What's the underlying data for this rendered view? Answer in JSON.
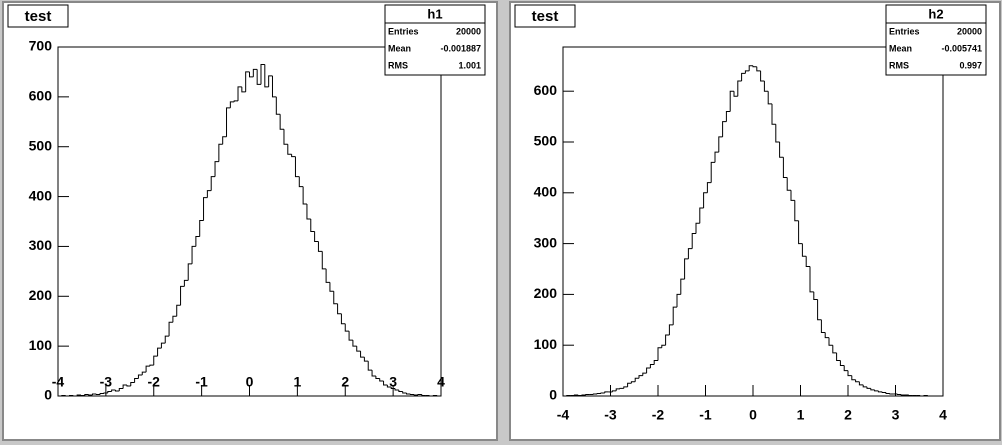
{
  "chart_data": [
    {
      "type": "histogram",
      "pad_title": "test",
      "stats_title": "h1",
      "stats": [
        {
          "label": "Entries",
          "value": 20000
        },
        {
          "label": "Mean",
          "value": -0.001887
        },
        {
          "label": "RMS",
          "value": 1.001
        }
      ],
      "bins": [
        -4,
        -3.92,
        -3.84,
        -3.76,
        -3.68,
        -3.6,
        -3.52,
        -3.44,
        -3.36,
        -3.28,
        -3.2,
        -3.12,
        -3.04,
        -2.96,
        -2.88,
        -2.8,
        -2.72,
        -2.64,
        -2.56,
        -2.48,
        -2.4,
        -2.32,
        -2.24,
        -2.16,
        -2.08,
        -2,
        -1.92,
        -1.84,
        -1.76,
        -1.68,
        -1.6,
        -1.52,
        -1.44,
        -1.36,
        -1.28,
        -1.2,
        -1.12,
        -1.04,
        -0.96,
        -0.88,
        -0.8,
        -0.72,
        -0.64,
        -0.56,
        -0.48,
        -0.4,
        -0.32,
        -0.24,
        -0.16,
        -0.08,
        0,
        0.08,
        0.16,
        0.24,
        0.32,
        0.4,
        0.48,
        0.56,
        0.64,
        0.72,
        0.8,
        0.88,
        0.96,
        1.04,
        1.12,
        1.2,
        1.28,
        1.36,
        1.44,
        1.52,
        1.6,
        1.68,
        1.76,
        1.84,
        1.92,
        2,
        2.08,
        2.16,
        2.24,
        2.32,
        2.4,
        2.48,
        2.56,
        2.64,
        2.72,
        2.8,
        2.88,
        2.96,
        3.04,
        3.12,
        3.2,
        3.28,
        3.36,
        3.44,
        3.52,
        3.6,
        3.68,
        3.76,
        3.84,
        3.92,
        4
      ],
      "values": [
        0,
        1,
        0,
        1,
        0,
        2,
        1,
        3,
        2,
        4,
        3,
        5,
        6,
        9,
        12,
        10,
        15,
        22,
        20,
        27,
        35,
        42,
        48,
        60,
        62,
        80,
        96,
        106,
        120,
        148,
        160,
        182,
        220,
        232,
        265,
        300,
        320,
        352,
        398,
        412,
        440,
        470,
        505,
        520,
        578,
        590,
        592,
        620,
        610,
        650,
        640,
        655,
        625,
        665,
        620,
        642,
        600,
        565,
        535,
        505,
        485,
        480,
        440,
        420,
        385,
        355,
        330,
        310,
        290,
        255,
        228,
        210,
        185,
        165,
        145,
        130,
        112,
        100,
        90,
        78,
        70,
        52,
        40,
        35,
        30,
        22,
        18,
        15,
        12,
        9,
        6,
        4,
        3,
        2,
        3,
        1,
        1,
        0,
        1,
        0
      ],
      "color": "#000000",
      "xlim": [
        -4,
        4
      ],
      "xticks": [
        -4,
        -3,
        -2,
        -1,
        0,
        1,
        2,
        3,
        4
      ],
      "ylim": [
        0,
        700
      ],
      "yticks": [
        0,
        100,
        200,
        300,
        400,
        500,
        600,
        700
      ]
    },
    {
      "type": "histogram",
      "pad_title": "test",
      "stats_title": "h2",
      "stats": [
        {
          "label": "Entries",
          "value": 20000
        },
        {
          "label": "Mean",
          "value": -0.005741
        },
        {
          "label": "RMS",
          "value": 0.997
        }
      ],
      "bins": [
        -4,
        -3.92,
        -3.84,
        -3.76,
        -3.68,
        -3.6,
        -3.52,
        -3.44,
        -3.36,
        -3.28,
        -3.2,
        -3.12,
        -3.04,
        -2.96,
        -2.88,
        -2.8,
        -2.72,
        -2.64,
        -2.56,
        -2.48,
        -2.4,
        -2.32,
        -2.24,
        -2.16,
        -2.08,
        -2,
        -1.92,
        -1.84,
        -1.76,
        -1.68,
        -1.6,
        -1.52,
        -1.44,
        -1.36,
        -1.28,
        -1.2,
        -1.12,
        -1.04,
        -0.96,
        -0.88,
        -0.8,
        -0.72,
        -0.64,
        -0.56,
        -0.48,
        -0.4,
        -0.32,
        -0.24,
        -0.16,
        -0.08,
        0,
        0.08,
        0.16,
        0.24,
        0.32,
        0.4,
        0.48,
        0.56,
        0.64,
        0.72,
        0.8,
        0.88,
        0.96,
        1.04,
        1.12,
        1.2,
        1.28,
        1.36,
        1.44,
        1.52,
        1.6,
        1.68,
        1.76,
        1.84,
        1.92,
        2,
        2.08,
        2.16,
        2.24,
        2.32,
        2.4,
        2.48,
        2.56,
        2.64,
        2.72,
        2.8,
        2.88,
        2.96,
        3.04,
        3.12,
        3.2,
        3.28,
        3.36,
        3.44,
        3.52,
        3.6,
        3.68,
        3.76,
        3.84,
        3.92,
        4
      ],
      "values": [
        0,
        1,
        1,
        2,
        1,
        2,
        3,
        3,
        4,
        5,
        6,
        8,
        8,
        10,
        14,
        15,
        18,
        25,
        28,
        35,
        40,
        45,
        55,
        62,
        70,
        95,
        100,
        120,
        140,
        175,
        200,
        230,
        270,
        290,
        320,
        340,
        370,
        400,
        420,
        460,
        480,
        510,
        540,
        560,
        600,
        590,
        620,
        635,
        640,
        650,
        648,
        640,
        620,
        600,
        575,
        535,
        500,
        470,
        430,
        405,
        385,
        345,
        300,
        275,
        255,
        205,
        190,
        150,
        125,
        115,
        100,
        85,
        70,
        60,
        50,
        40,
        32,
        28,
        22,
        18,
        15,
        12,
        10,
        8,
        7,
        5,
        4,
        4,
        3,
        2,
        2,
        1,
        1,
        1,
        0,
        1,
        0,
        0,
        0,
        0
      ],
      "color": "#000000",
      "xlim": [
        -4,
        4
      ],
      "xticks": [
        -4,
        -3,
        -2,
        -1,
        0,
        1,
        2,
        3,
        4
      ],
      "ylim": [
        0,
        687
      ],
      "yticks": [
        0,
        100,
        200,
        300,
        400,
        500,
        600
      ]
    }
  ]
}
